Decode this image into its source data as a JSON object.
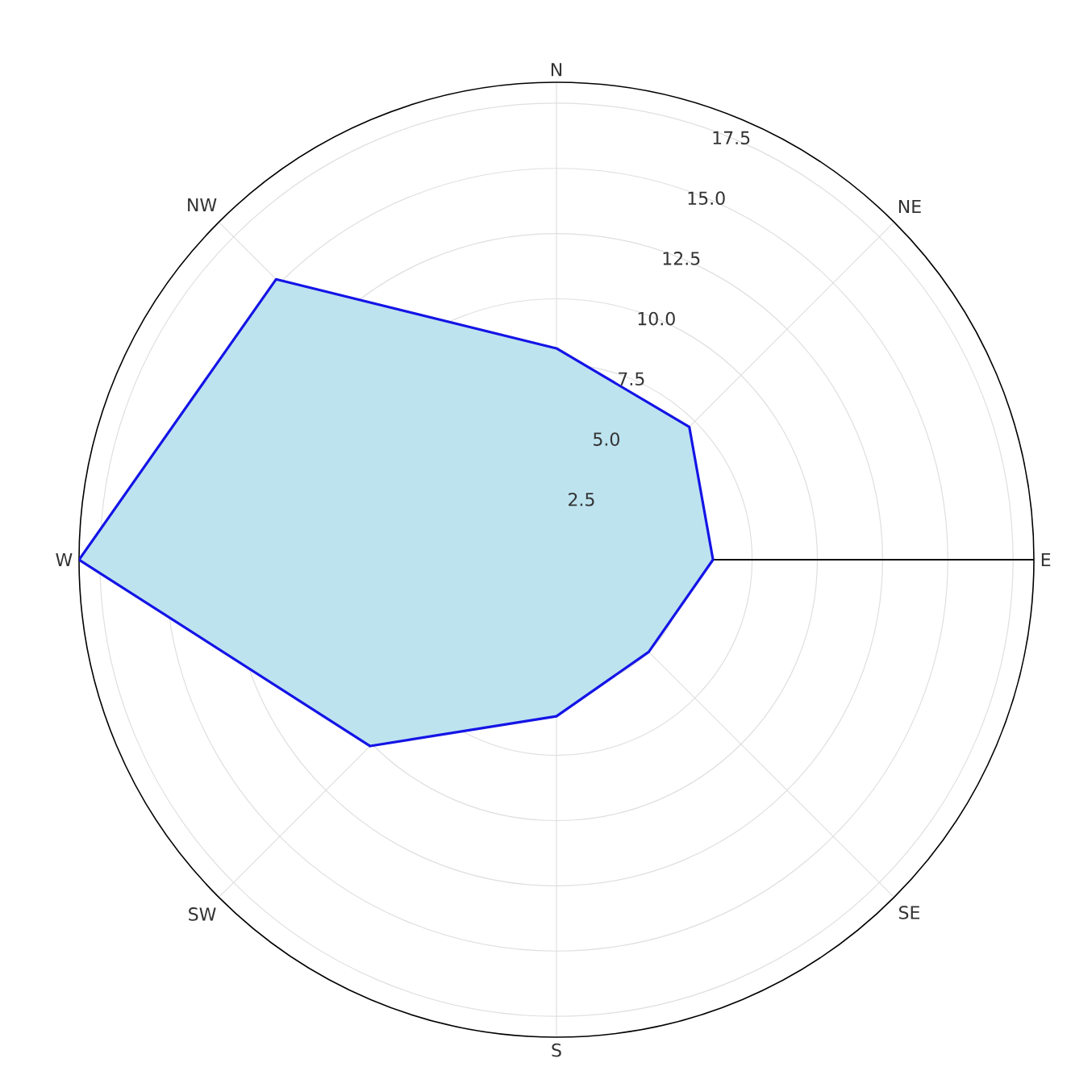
{
  "chart_data": {
    "type": "radar",
    "categories": [
      "N",
      "NE",
      "E",
      "SE",
      "S",
      "SW",
      "W",
      "NW"
    ],
    "series": [
      {
        "color": "#1414e6",
        "values": [
          8.1,
          7.2,
          6.0,
          5.0,
          6.0,
          10.1,
          18.3,
          15.2
        ]
      }
    ],
    "ylim": [
      0,
      18.3
    ],
    "yticks": [
      {
        "value": 2.5,
        "label": "2.5"
      },
      {
        "value": 5.0,
        "label": "5.0"
      },
      {
        "value": 7.5,
        "label": "7.5"
      },
      {
        "value": 10.0,
        "label": "10.0"
      },
      {
        "value": 12.5,
        "label": "12.5"
      },
      {
        "value": 15.0,
        "label": "15.0"
      },
      {
        "value": 17.5,
        "label": "17.5"
      }
    ],
    "grid": true
  }
}
